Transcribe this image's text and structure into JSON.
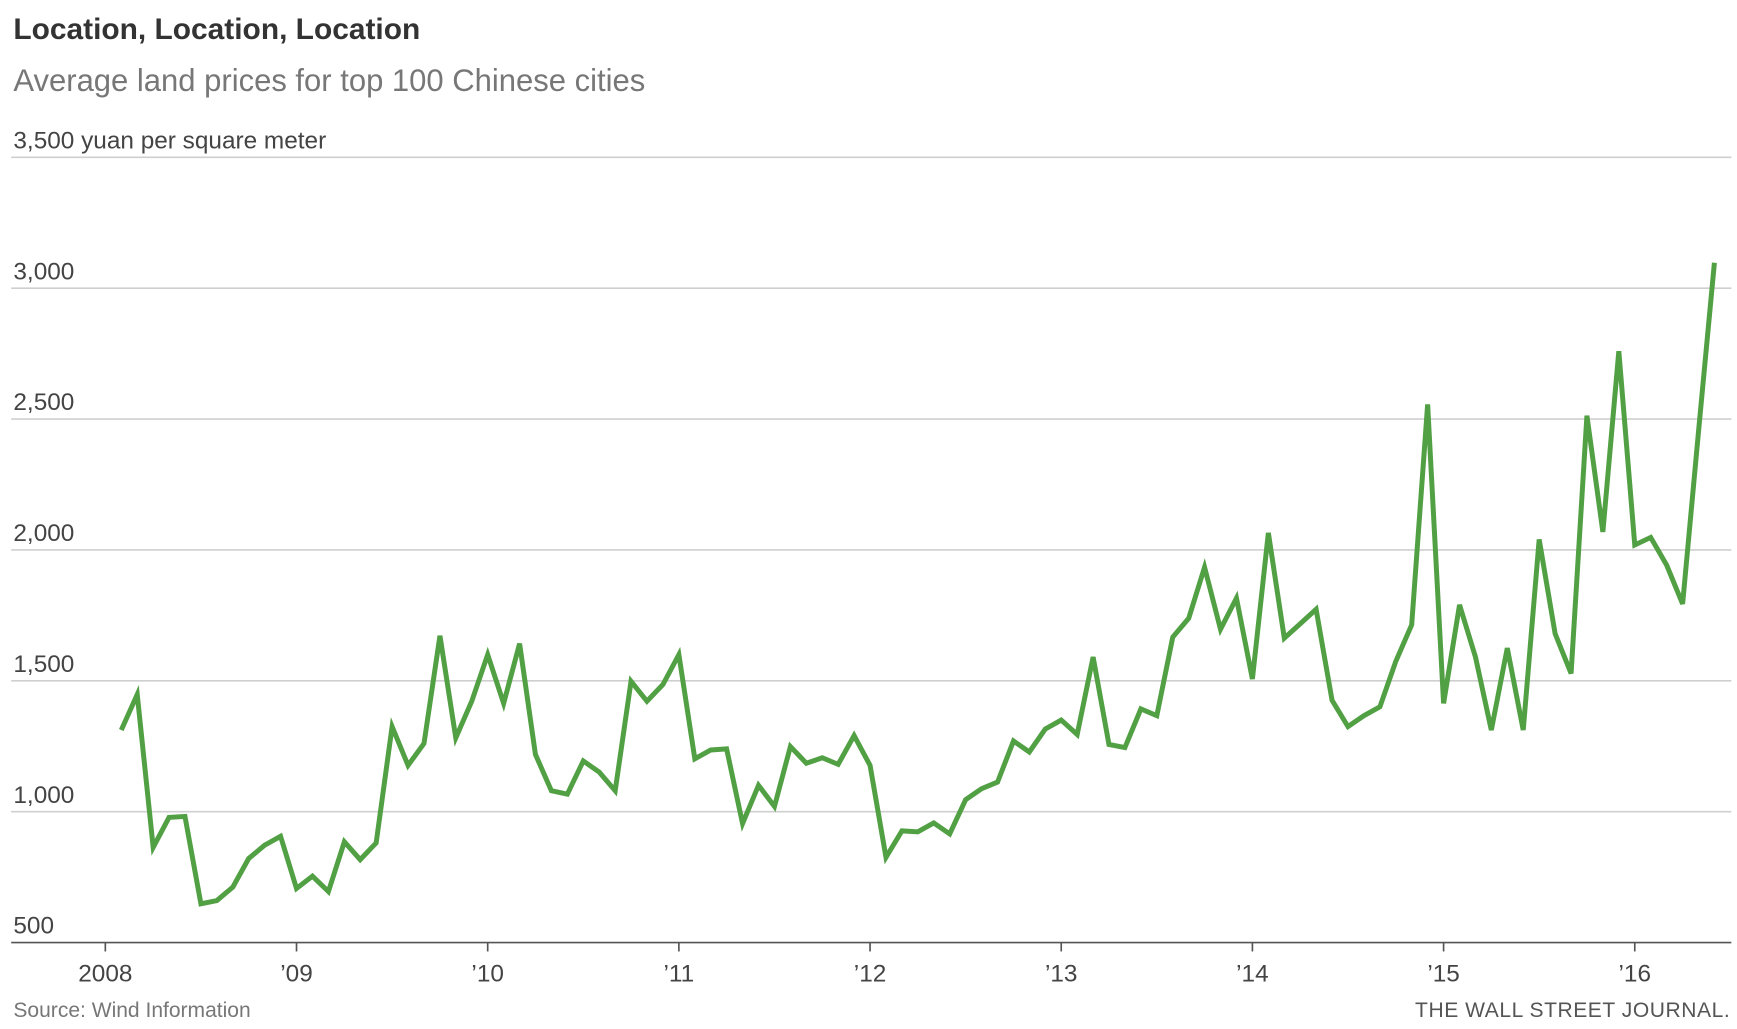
{
  "header": {
    "title": "Location, Location, Location",
    "subtitle": "Average land prices for top 100 Chinese cities"
  },
  "footer": {
    "source": "Source: Wind Information",
    "publisher": "THE WALL STREET JOURNAL."
  },
  "chart_data": {
    "type": "line",
    "title": "Location, Location, Location",
    "subtitle": "Average land prices for top 100 Chinese cities",
    "ylabel": "yuan per square meter",
    "xlabel": "",
    "ylim": [
      500,
      3500
    ],
    "yticks": [
      500,
      1000,
      1500,
      2000,
      2500,
      3000,
      3500
    ],
    "ytick_labels": [
      "500",
      "1,000",
      "1,500",
      "2,000",
      "2,500",
      "3,000",
      "3,500 yuan per square meter"
    ],
    "xlim": [
      2008,
      2016.5
    ],
    "xticks": [
      2008,
      2009,
      2010,
      2011,
      2012,
      2013,
      2014,
      2015,
      2016
    ],
    "xtick_labels": [
      "2008",
      "’09",
      "’10",
      "’11",
      "’12",
      "’13",
      "’14",
      "’15",
      "’16"
    ],
    "grid": true,
    "color": "#52a044",
    "frequency": "monthly",
    "start": "2008-02",
    "series": [
      {
        "name": "Average land price",
        "values": [
          1312,
          1448,
          864,
          978,
          982,
          648,
          661,
          712,
          821,
          872,
          906,
          707,
          754,
          695,
          885,
          817,
          881,
          1325,
          1177,
          1261,
          1672,
          1282,
          1422,
          1600,
          1414,
          1642,
          1219,
          1080,
          1067,
          1194,
          1151,
          1080,
          1498,
          1422,
          1486,
          1600,
          1202,
          1236,
          1240,
          955,
          1101,
          1020,
          1249,
          1185,
          1206,
          1181,
          1291,
          1177,
          826,
          927,
          923,
          957,
          915,
          1046,
          1088,
          1113,
          1270,
          1228,
          1316,
          1350,
          1295,
          1591,
          1257,
          1245,
          1393,
          1367,
          1667,
          1739,
          1934,
          1697,
          1816,
          1507,
          2065,
          1663,
          1718,
          1773,
          1426,
          1325,
          1367,
          1401,
          1574,
          1714,
          2556,
          1414,
          1790,
          1591,
          1312,
          1625,
          1312,
          2040,
          1680,
          1528,
          2513,
          2069,
          2759,
          2019,
          2048,
          1942,
          1794,
          2450,
          3097
        ]
      }
    ]
  }
}
